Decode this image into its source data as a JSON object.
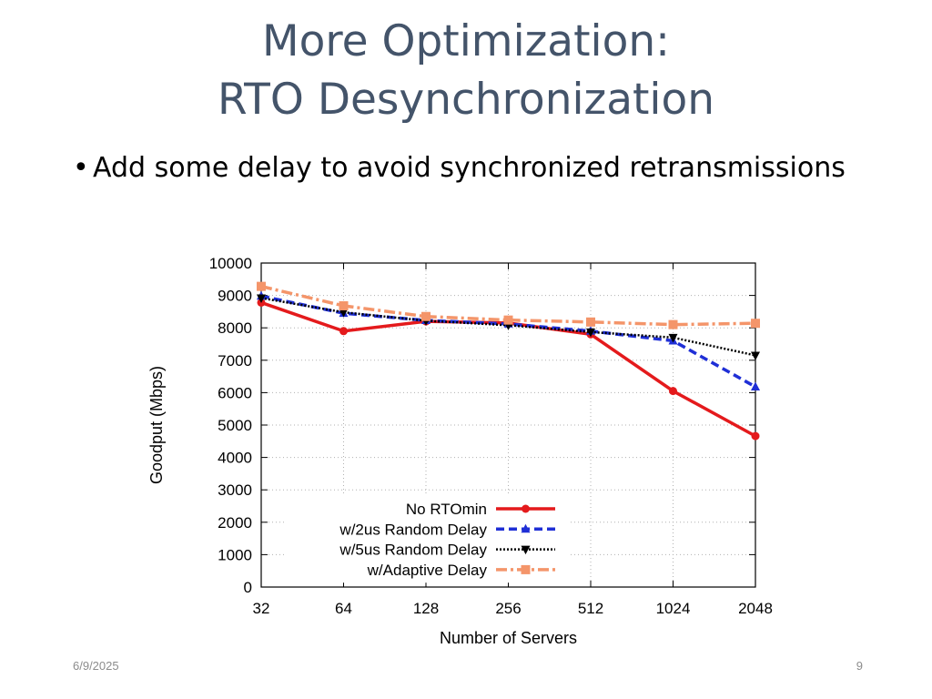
{
  "slide": {
    "title_line1": "More Optimization:",
    "title_line2": "RTO Desynchronization",
    "bullet": "Add some delay to avoid synchronized retransmissions",
    "bullet_glyph": "•",
    "date": "6/9/2025",
    "page_number": "9"
  },
  "chart_data": {
    "type": "line",
    "title": "",
    "xlabel": "Number of Servers",
    "ylabel": "Goodput (Mbps)",
    "categories": [
      "32",
      "64",
      "128",
      "256",
      "512",
      "1024",
      "2048"
    ],
    "ylim": [
      0,
      10000
    ],
    "yticks": [
      0,
      1000,
      2000,
      3000,
      4000,
      5000,
      6000,
      7000,
      8000,
      9000,
      10000
    ],
    "grid": true,
    "legend_position": "bottom-right",
    "series": [
      {
        "name": "No RTOmin",
        "color": "#e41a1c",
        "dash": "solid",
        "marker": "circle",
        "values": [
          8780,
          7900,
          8200,
          8150,
          7800,
          6050,
          4660
        ]
      },
      {
        "name": "w/2us Random Delay",
        "color": "#1f2fd6",
        "dash": "dashed",
        "marker": "triangle-up",
        "values": [
          8980,
          8450,
          8230,
          8120,
          7900,
          7600,
          6180
        ]
      },
      {
        "name": "w/5us Random Delay",
        "color": "#000000",
        "dash": "dotted",
        "marker": "triangle-down",
        "values": [
          8920,
          8480,
          8220,
          8080,
          7870,
          7700,
          7150
        ]
      },
      {
        "name": "w/Adaptive Delay",
        "color": "#f4956a",
        "dash": "dashdot",
        "marker": "square",
        "values": [
          9280,
          8680,
          8350,
          8240,
          8180,
          8100,
          8140
        ]
      }
    ]
  }
}
